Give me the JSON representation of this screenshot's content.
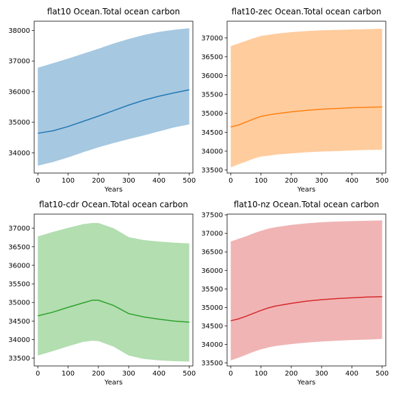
{
  "chart_data": [
    {
      "type": "area",
      "title": "flat10 Ocean.Total ocean carbon",
      "xlabel": "Years",
      "ylabel": "",
      "xlim": [
        -12,
        512
      ],
      "ylim": [
        33340,
        38300
      ],
      "xticks": [
        0,
        100,
        200,
        300,
        400,
        500
      ],
      "yticks": [
        34000,
        35000,
        36000,
        37000,
        38000
      ],
      "color": "#1f77b4",
      "band_color": "#a6c8e1",
      "series": [
        {
          "x": [
            0,
            50,
            100,
            150,
            200,
            250,
            300,
            350,
            400,
            450,
            500
          ],
          "mean": [
            34640,
            34720,
            34860,
            35030,
            35200,
            35380,
            35560,
            35720,
            35850,
            35960,
            36060
          ],
          "upper": [
            36780,
            36930,
            37080,
            37240,
            37400,
            37570,
            37720,
            37850,
            37950,
            38020,
            38070
          ],
          "lower": [
            33580,
            33700,
            33850,
            34020,
            34180,
            34320,
            34450,
            34570,
            34700,
            34830,
            34930
          ]
        }
      ]
    },
    {
      "type": "area",
      "title": "flat10-zec Ocean.Total ocean carbon",
      "xlabel": "Years",
      "ylabel": "",
      "xlim": [
        -12,
        512
      ],
      "ylim": [
        33420,
        37440
      ],
      "xticks": [
        0,
        100,
        200,
        300,
        400,
        500
      ],
      "yticks": [
        33500,
        34000,
        34500,
        35000,
        35500,
        36000,
        36500,
        37000
      ],
      "color": "#ff7f0e",
      "band_color": "#ffcc9e",
      "series": [
        {
          "x": [
            0,
            25,
            50,
            75,
            100,
            125,
            150,
            200,
            250,
            300,
            350,
            400,
            450,
            500
          ],
          "mean": [
            34640,
            34690,
            34770,
            34850,
            34920,
            34960,
            34990,
            35040,
            35080,
            35110,
            35130,
            35150,
            35160,
            35170
          ],
          "upper": [
            36780,
            36850,
            36920,
            36990,
            37050,
            37080,
            37110,
            37150,
            37180,
            37200,
            37210,
            37220,
            37230,
            37240
          ],
          "lower": [
            33570,
            33650,
            33720,
            33800,
            33860,
            33880,
            33910,
            33940,
            33970,
            33990,
            34000,
            34020,
            34030,
            34040
          ]
        }
      ]
    },
    {
      "type": "area",
      "title": "flat10-cdr Ocean.Total ocean carbon",
      "xlabel": "Years",
      "ylabel": "",
      "xlim": [
        -12,
        512
      ],
      "ylim": [
        33290,
        37380
      ],
      "xticks": [
        0,
        100,
        200,
        300,
        400,
        500
      ],
      "yticks": [
        33500,
        34000,
        34500,
        35000,
        35500,
        36000,
        36500,
        37000
      ],
      "color": "#2ca02c",
      "band_color": "#b2deb0",
      "series": [
        {
          "x": [
            0,
            50,
            100,
            150,
            180,
            200,
            250,
            300,
            350,
            400,
            450,
            500
          ],
          "mean": [
            34640,
            34740,
            34870,
            34990,
            35060,
            35060,
            34920,
            34700,
            34610,
            34550,
            34500,
            34470
          ],
          "upper": [
            36780,
            36900,
            37010,
            37110,
            37140,
            37140,
            37000,
            36760,
            36680,
            36640,
            36610,
            36590
          ],
          "lower": [
            33570,
            33690,
            33820,
            33940,
            33970,
            33960,
            33810,
            33570,
            33480,
            33440,
            33420,
            33410
          ]
        }
      ]
    },
    {
      "type": "area",
      "title": "flat10-nz Ocean.Total ocean carbon",
      "xlabel": "Years",
      "ylabel": "",
      "xlim": [
        -12,
        512
      ],
      "ylim": [
        33420,
        37520
      ],
      "xticks": [
        0,
        100,
        200,
        300,
        400,
        500
      ],
      "yticks": [
        33500,
        34000,
        34500,
        35000,
        35500,
        36000,
        36500,
        37000,
        37500
      ],
      "color": "#d62728",
      "band_color": "#f0b4b5",
      "series": [
        {
          "x": [
            0,
            25,
            50,
            75,
            100,
            125,
            150,
            200,
            250,
            300,
            350,
            400,
            450,
            500
          ],
          "mean": [
            34640,
            34690,
            34760,
            34840,
            34920,
            34990,
            35040,
            35110,
            35170,
            35210,
            35240,
            35260,
            35280,
            35290
          ],
          "upper": [
            36780,
            36850,
            36920,
            37000,
            37070,
            37130,
            37170,
            37230,
            37270,
            37300,
            37320,
            37330,
            37340,
            37350
          ],
          "lower": [
            33570,
            33640,
            33720,
            33800,
            33870,
            33920,
            33960,
            34010,
            34050,
            34080,
            34100,
            34120,
            34130,
            34150
          ]
        }
      ]
    }
  ]
}
